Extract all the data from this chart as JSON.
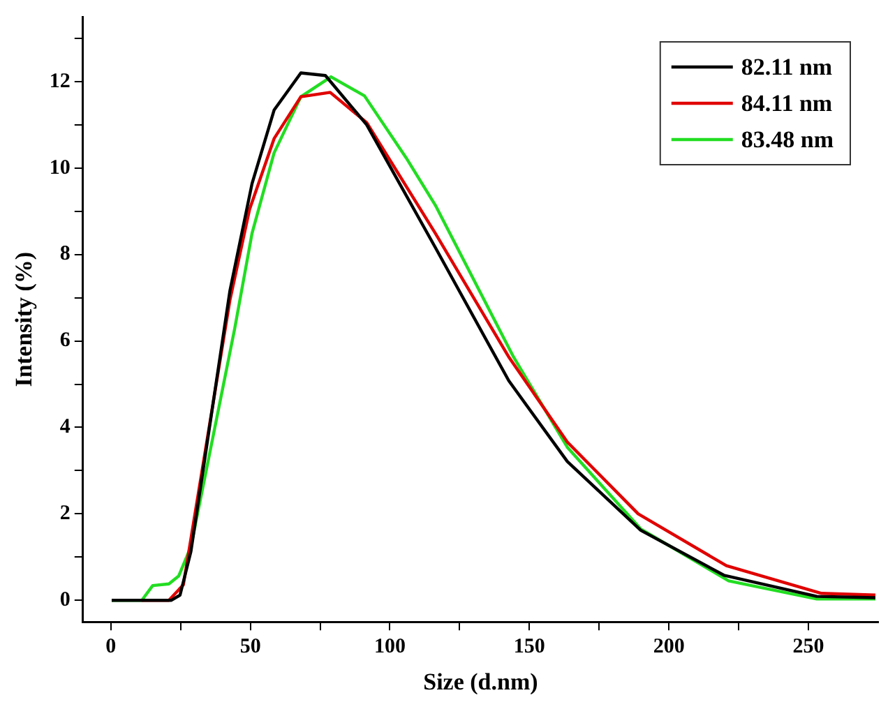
{
  "chart_data": {
    "type": "line",
    "xlabel": "Size (d.nm)",
    "ylabel": "Intensity (%)",
    "xlim": [
      -10,
      275
    ],
    "ylim": [
      -0.5,
      13.5
    ],
    "xticks": [
      0,
      {
        "value": 25,
        "label": null
      },
      50,
      {
        "value": 75,
        "label": null
      },
      100,
      {
        "value": 125,
        "label": null
      },
      150,
      {
        "value": 175,
        "label": null
      },
      200,
      {
        "value": 225,
        "label": null
      },
      250
    ],
    "yticks": [
      0,
      {
        "value": 1,
        "label": null
      },
      2,
      {
        "value": 3,
        "label": null
      },
      4,
      {
        "value": 5,
        "label": null
      },
      6,
      {
        "value": 7,
        "label": null
      },
      8,
      {
        "value": 9,
        "label": null
      },
      10,
      {
        "value": 11,
        "label": null
      },
      12,
      {
        "value": 13,
        "label": null
      }
    ],
    "grid": false,
    "legend": "top right",
    "marker": "none",
    "line_style": "solid",
    "series": [
      {
        "name": "82.11 nm",
        "color": "#000000",
        "x": [
          0.3,
          21.7,
          24.8,
          28.7,
          42.7,
          50.6,
          58.5,
          68.1,
          76.9,
          91.7,
          116.3,
          142.6,
          163.6,
          189.9,
          219.7,
          253,
          274
        ],
        "values": [
          0,
          0,
          0.12,
          1.13,
          7.17,
          9.64,
          11.34,
          12.2,
          12.14,
          11.0,
          8.16,
          5.08,
          3.21,
          1.62,
          0.58,
          0.09,
          0.06
        ]
      },
      {
        "name": "84.11 nm",
        "color": "#e00000",
        "x": [
          11.1,
          20.8,
          26.0,
          42.7,
          49.7,
          58.5,
          68.1,
          78.6,
          91.7,
          116.3,
          142.6,
          163.6,
          189,
          220.6,
          254.7,
          274
        ],
        "values": [
          0,
          0,
          0.36,
          6.95,
          9.04,
          10.68,
          11.65,
          11.75,
          11.05,
          8.49,
          5.63,
          3.66,
          2.0,
          0.8,
          0.16,
          0.12
        ]
      },
      {
        "name": "83.48 nm",
        "color": "#22dd22",
        "x": [
          0.3,
          11.1,
          15.0,
          20.8,
          24.3,
          28.7,
          44.4,
          50.6,
          58.5,
          68.1,
          78.9,
          90.9,
          105.8,
          116.3,
          144.3,
          163.6,
          189.9,
          221.4,
          253,
          274
        ],
        "values": [
          0,
          0,
          0.34,
          0.38,
          0.56,
          1.24,
          6.29,
          8.49,
          10.35,
          11.65,
          12.11,
          11.67,
          10.24,
          9.14,
          5.63,
          3.54,
          1.65,
          0.45,
          0.03,
          0.03
        ]
      }
    ]
  }
}
